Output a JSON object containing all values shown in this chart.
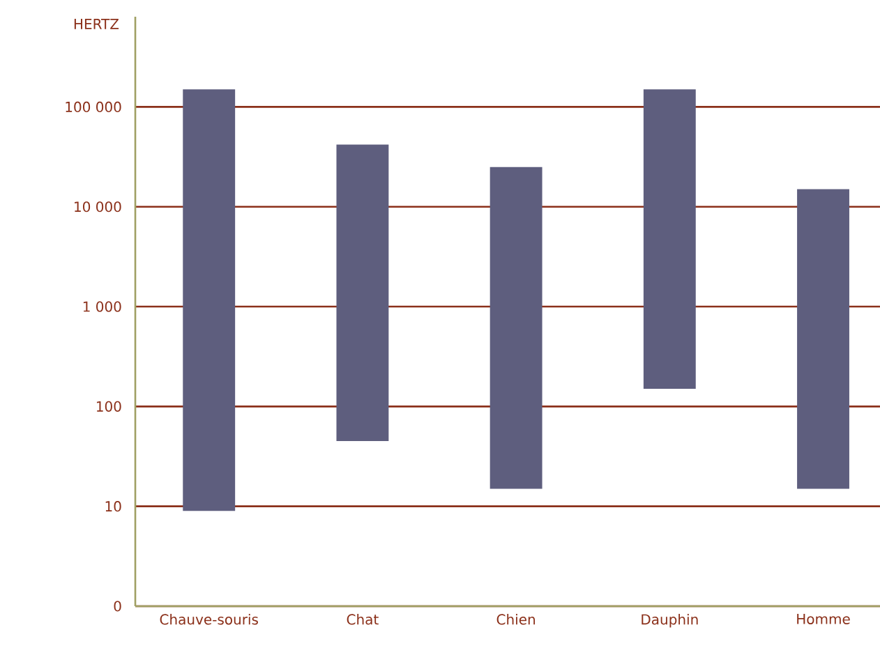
{
  "chart_data": {
    "type": "bar",
    "ylabel": "HERTZ",
    "categories": [
      "Chauve-souris",
      "Chat",
      "Chien",
      "Dauphin",
      "Homme"
    ],
    "base": [
      9,
      45,
      15,
      150,
      15
    ],
    "values": [
      149991,
      41955,
      24985,
      149850,
      14985
    ],
    "color": "#5e5e7e",
    "log": true,
    "ylim": [
      0,
      800000
    ],
    "yticks": [
      0,
      {
        "value": 10,
        "label": "10"
      },
      {
        "value": 100,
        "label": "100"
      },
      {
        "value": 1000,
        "label": "1 000"
      },
      {
        "value": 10000,
        "label": "10 000"
      },
      {
        "value": 100000,
        "label": "100 000"
      }
    ],
    "grid": "y"
  }
}
